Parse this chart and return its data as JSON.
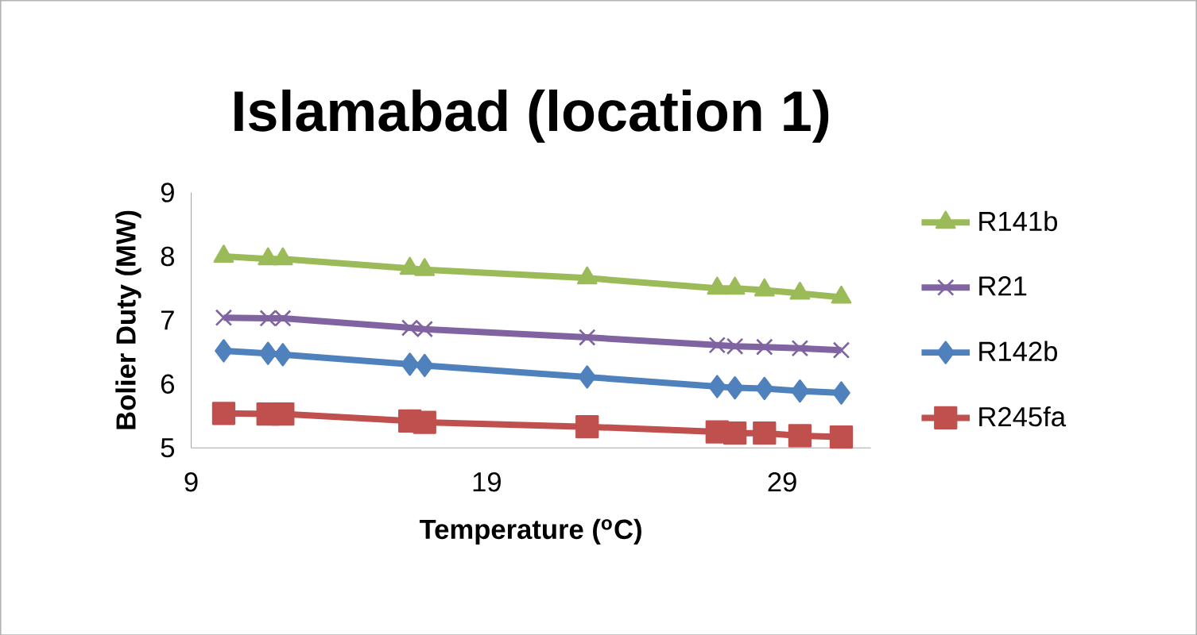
{
  "chart_data": {
    "type": "line",
    "title": "Islamabad (location 1)",
    "xlabel": "Temperature ($^{o}$C)",
    "ylabel": "Bolier Duty (MW)",
    "x": [
      10.1,
      11.6,
      12.1,
      16.4,
      16.9,
      22.4,
      26.8,
      27.4,
      28.4,
      29.6,
      31.0
    ],
    "xlim": [
      9,
      32
    ],
    "xticks": [
      9,
      19,
      29
    ],
    "ylim": [
      5,
      9
    ],
    "yticks": [
      5,
      6,
      7,
      8,
      9
    ],
    "grid": false,
    "legend": "right",
    "line_style": "solid",
    "series": [
      {
        "name": "R141b",
        "color": "#9bbb59",
        "marker": "triangle",
        "values": [
          8.0,
          7.96,
          7.96,
          7.81,
          7.79,
          7.66,
          7.5,
          7.5,
          7.47,
          7.42,
          7.36
        ]
      },
      {
        "name": "R21",
        "color": "#8064a2",
        "marker": "cross",
        "values": [
          7.04,
          7.03,
          7.03,
          6.88,
          6.86,
          6.73,
          6.61,
          6.59,
          6.58,
          6.56,
          6.53
        ]
      },
      {
        "name": "R142b",
        "color": "#4f81bd",
        "marker": "diamond",
        "values": [
          6.52,
          6.48,
          6.46,
          6.31,
          6.29,
          6.11,
          5.96,
          5.94,
          5.93,
          5.89,
          5.86
        ]
      },
      {
        "name": "R245fa",
        "color": "#c0504d",
        "marker": "square",
        "values": [
          5.54,
          5.53,
          5.53,
          5.42,
          5.4,
          5.33,
          5.25,
          5.23,
          5.23,
          5.19,
          5.17
        ]
      }
    ]
  }
}
